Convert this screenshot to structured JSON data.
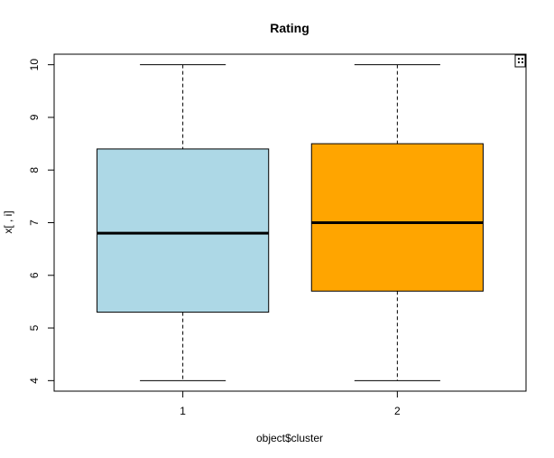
{
  "chart_data": {
    "type": "box",
    "title": "Rating",
    "xlabel": "object$cluster",
    "ylabel": "x[ , i]",
    "categories": [
      "1",
      "2"
    ],
    "ylim": [
      3.8,
      10.2
    ],
    "yticks": [
      4,
      5,
      6,
      7,
      8,
      9,
      10
    ],
    "grid": false,
    "boxes": [
      {
        "category": "1",
        "min": 4.0,
        "q1": 5.3,
        "median": 6.8,
        "q3": 8.4,
        "max": 10.0,
        "color": "#add8e6"
      },
      {
        "category": "2",
        "min": 4.0,
        "q1": 5.7,
        "median": 7.0,
        "q3": 8.5,
        "max": 10.0,
        "color": "#ffa500"
      }
    ]
  }
}
